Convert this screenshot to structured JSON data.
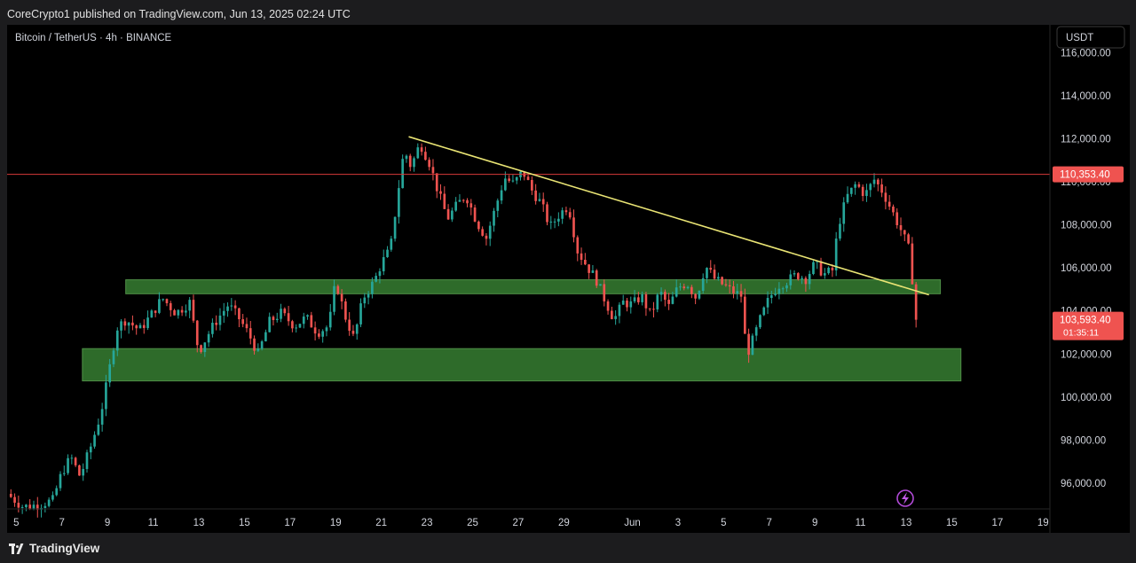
{
  "header": {
    "publisher": "CoreCrypto1 published on TradingView.com, Jun 13, 2025 02:24 UTC"
  },
  "symbol": {
    "title": "Bitcoin / TetherUS · 4h · BINANCE"
  },
  "price_axis": {
    "currency": "USDT"
  },
  "footer": {
    "brand": "TradingView"
  },
  "colors": {
    "up": "#26a69a",
    "down": "#ef5350",
    "zone": "#2e6b2a",
    "trendline": "#e9e474",
    "resistance": "#d83a3a",
    "background": "#000000"
  },
  "icons": [
    "lightning-icon",
    "tradingview-logo-icon"
  ],
  "chart_data": {
    "type": "candlestick",
    "timeframe": "4h",
    "ylim": [
      94800,
      117300
    ],
    "y_ticks": [
      96000,
      98000,
      100000,
      102000,
      104000,
      106000,
      108000,
      110000,
      112000,
      114000,
      116000
    ],
    "y_tick_labels": [
      "96,000.00",
      "98,000.00",
      "100,000.00",
      "102,000.00",
      "104,000.00",
      "106,000.00",
      "108,000.00",
      "110,000.00",
      "112,000.00",
      "114,000.00",
      "116,000.00"
    ],
    "x_ticks": [
      {
        "day": 5,
        "label": "5"
      },
      {
        "day": 7,
        "label": "7"
      },
      {
        "day": 9,
        "label": "9"
      },
      {
        "day": 11,
        "label": "11"
      },
      {
        "day": 13,
        "label": "13"
      },
      {
        "day": 15,
        "label": "15"
      },
      {
        "day": 17,
        "label": "17"
      },
      {
        "day": 19,
        "label": "19"
      },
      {
        "day": 21,
        "label": "21"
      },
      {
        "day": 23,
        "label": "23"
      },
      {
        "day": 25,
        "label": "25"
      },
      {
        "day": 27,
        "label": "27"
      },
      {
        "day": 29,
        "label": "29"
      },
      {
        "day": 32,
        "label": "Jun"
      },
      {
        "day": 34,
        "label": "3"
      },
      {
        "day": 36,
        "label": "5"
      },
      {
        "day": 38,
        "label": "7"
      },
      {
        "day": 40,
        "label": "9"
      },
      {
        "day": 42,
        "label": "11"
      },
      {
        "day": 44,
        "label": "13"
      },
      {
        "day": 46,
        "label": "15"
      },
      {
        "day": 48,
        "label": "17"
      },
      {
        "day": 50,
        "label": "19"
      }
    ],
    "x_range_days": [
      4.6,
      50.3
    ],
    "resistance_line": {
      "price": 110353.4,
      "label": "110,353.40"
    },
    "last_price": {
      "price": 103593.4,
      "label": "103,593.40",
      "countdown": "01:35:11"
    },
    "zones": [
      {
        "name": "upper-support-zone",
        "day_start": 9.8,
        "day_end": 45.5,
        "price_low": 104800,
        "price_high": 105450
      },
      {
        "name": "lower-support-zone",
        "day_start": 7.9,
        "day_end": 46.4,
        "price_low": 100750,
        "price_high": 102250
      }
    ],
    "trendline": {
      "from": {
        "day": 22.2,
        "price": 112100
      },
      "to": {
        "day": 45.0,
        "price": 104750
      }
    },
    "path": [
      [
        4.6,
        95500
      ],
      [
        5.3,
        94900
      ],
      [
        6.0,
        95000
      ],
      [
        6.6,
        95200
      ],
      [
        7.0,
        96500
      ],
      [
        7.4,
        97200
      ],
      [
        7.8,
        96300
      ],
      [
        8.3,
        97800
      ],
      [
        8.7,
        99200
      ],
      [
        9.0,
        100800
      ],
      [
        9.4,
        103200
      ],
      [
        9.8,
        103600
      ],
      [
        10.4,
        103100
      ],
      [
        10.9,
        103800
      ],
      [
        11.4,
        104600
      ],
      [
        12.0,
        103900
      ],
      [
        12.6,
        104400
      ],
      [
        13.0,
        102100
      ],
      [
        13.4,
        102900
      ],
      [
        13.8,
        103600
      ],
      [
        14.3,
        104300
      ],
      [
        14.8,
        103600
      ],
      [
        15.2,
        102900
      ],
      [
        15.6,
        102000
      ],
      [
        16.1,
        103500
      ],
      [
        16.6,
        103900
      ],
      [
        17.2,
        103300
      ],
      [
        17.7,
        103700
      ],
      [
        18.2,
        103000
      ],
      [
        18.7,
        103300
      ],
      [
        19.0,
        105400
      ],
      [
        19.4,
        103800
      ],
      [
        19.8,
        102700
      ],
      [
        20.2,
        104600
      ],
      [
        20.7,
        105400
      ],
      [
        21.0,
        106200
      ],
      [
        21.4,
        106900
      ],
      [
        21.7,
        109300
      ],
      [
        22.0,
        111500
      ],
      [
        22.3,
        110700
      ],
      [
        22.7,
        111800
      ],
      [
        23.1,
        110900
      ],
      [
        23.5,
        109500
      ],
      [
        23.9,
        108300
      ],
      [
        24.3,
        108900
      ],
      [
        24.7,
        109400
      ],
      [
        25.2,
        108100
      ],
      [
        25.6,
        107400
      ],
      [
        26.0,
        108800
      ],
      [
        26.4,
        110200
      ],
      [
        26.8,
        109900
      ],
      [
        27.2,
        110500
      ],
      [
        27.6,
        109600
      ],
      [
        28.0,
        109000
      ],
      [
        28.4,
        107900
      ],
      [
        28.8,
        108500
      ],
      [
        29.2,
        108900
      ],
      [
        29.6,
        106800
      ],
      [
        30.0,
        106100
      ],
      [
        30.4,
        105500
      ],
      [
        30.8,
        104500
      ],
      [
        31.2,
        103600
      ],
      [
        31.6,
        104400
      ],
      [
        32.0,
        104300
      ],
      [
        32.4,
        104700
      ],
      [
        32.8,
        103800
      ],
      [
        33.2,
        104900
      ],
      [
        33.6,
        104200
      ],
      [
        34.0,
        105100
      ],
      [
        34.4,
        105300
      ],
      [
        34.8,
        104600
      ],
      [
        35.2,
        106100
      ],
      [
        35.6,
        105500
      ],
      [
        36.0,
        105200
      ],
      [
        36.4,
        104900
      ],
      [
        36.8,
        104700
      ],
      [
        37.0,
        101900
      ],
      [
        37.3,
        102700
      ],
      [
        37.6,
        103600
      ],
      [
        38.0,
        104600
      ],
      [
        38.4,
        105200
      ],
      [
        38.8,
        105400
      ],
      [
        39.2,
        105700
      ],
      [
        39.6,
        105500
      ],
      [
        40.0,
        106200
      ],
      [
        40.4,
        105700
      ],
      [
        40.8,
        105900
      ],
      [
        41.0,
        107900
      ],
      [
        41.4,
        109300
      ],
      [
        41.8,
        109900
      ],
      [
        42.2,
        109400
      ],
      [
        42.6,
        110100
      ],
      [
        43.0,
        109500
      ],
      [
        43.4,
        108600
      ],
      [
        43.8,
        107700
      ],
      [
        44.1,
        106900
      ],
      [
        44.3,
        105200
      ],
      [
        44.5,
        103593
      ]
    ]
  }
}
